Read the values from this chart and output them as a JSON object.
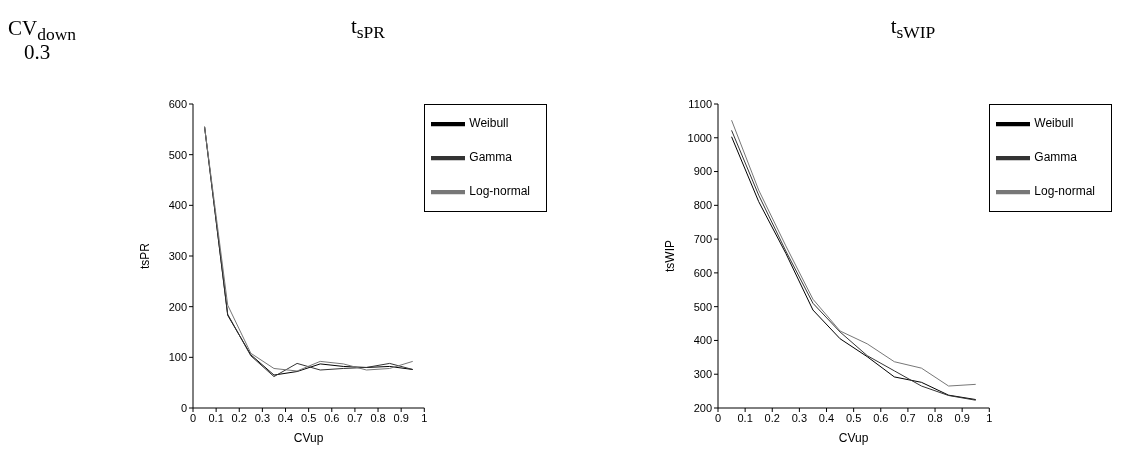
{
  "chart_data": [
    {
      "type": "line",
      "title": "t$_{sPR}$",
      "annotations": [
        "CV$_{down}$",
        "0.3"
      ],
      "xlabel": "CVup",
      "ylabel": "tsPR",
      "x": [
        0.05,
        0.15,
        0.25,
        0.35,
        0.45,
        0.55,
        0.65,
        0.75,
        0.85,
        0.95
      ],
      "series": [
        {
          "name": "Weibull",
          "color": "#000000",
          "values": [
            555,
            183,
            105,
            65,
            72,
            87,
            82,
            80,
            82,
            76
          ]
        },
        {
          "name": "Gamma",
          "color": "#333333",
          "values": [
            555,
            185,
            103,
            62,
            88,
            75,
            78,
            80,
            88,
            76
          ]
        },
        {
          "name": "Log-normal",
          "color": "#777777",
          "values": [
            555,
            203,
            108,
            78,
            73,
            92,
            87,
            75,
            78,
            92
          ]
        }
      ],
      "xlim": [
        0,
        1
      ],
      "xticks": [
        0,
        0.1,
        0.2,
        0.3,
        0.4,
        0.5,
        0.6,
        0.7,
        0.8,
        0.9,
        1
      ],
      "ylim": [
        0,
        600
      ],
      "yticks": [
        0,
        100,
        200,
        300,
        400,
        500,
        600
      ],
      "grid": false,
      "legend": "top right",
      "marker": "none",
      "line_style": "solid"
    },
    {
      "type": "line",
      "title": "t$_{sWIP}$",
      "xlabel": "CVup",
      "ylabel": "tsWIP",
      "x": [
        0.05,
        0.15,
        0.25,
        0.35,
        0.45,
        0.55,
        0.65,
        0.75,
        0.85,
        0.95
      ],
      "series": [
        {
          "name": "Weibull",
          "color": "#000000",
          "values": [
            1003,
            811,
            658,
            490,
            405,
            352,
            292,
            276,
            238,
            225
          ]
        },
        {
          "name": "Gamma",
          "color": "#333333",
          "values": [
            1022,
            830,
            665,
            510,
            425,
            355,
            310,
            265,
            237,
            223
          ]
        },
        {
          "name": "Log-normal",
          "color": "#777777",
          "values": [
            1052,
            845,
            680,
            522,
            428,
            390,
            337,
            318,
            265,
            270
          ]
        }
      ],
      "xlim": [
        0,
        1
      ],
      "xticks": [
        0,
        0.1,
        0.2,
        0.3,
        0.4,
        0.5,
        0.6,
        0.7,
        0.8,
        0.9,
        1
      ],
      "ylim": [
        200,
        1100
      ],
      "yticks": [
        200,
        300,
        400,
        500,
        600,
        700,
        800,
        900,
        1000,
        1100
      ],
      "grid": false,
      "legend": "top right",
      "marker": "none",
      "line_style": "solid"
    }
  ]
}
